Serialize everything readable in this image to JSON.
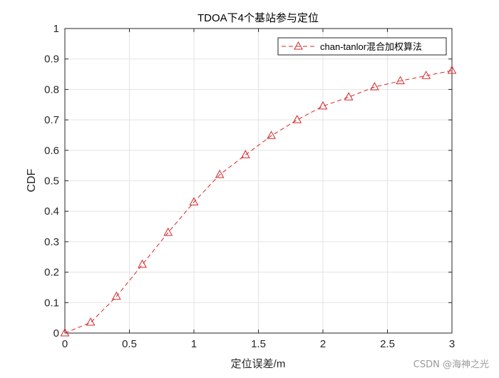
{
  "chart_data": {
    "type": "line",
    "title": "TDOA下4个基站参与定位",
    "xlabel": "定位误差/m",
    "ylabel": "CDF",
    "xlim": [
      0,
      3
    ],
    "ylim": [
      0,
      1
    ],
    "xticks": [
      0,
      0.5,
      1,
      1.5,
      2,
      2.5,
      3
    ],
    "xtick_labels": [
      "0",
      "0.5",
      "1",
      "1.5",
      "2",
      "2.5",
      "3"
    ],
    "yticks": [
      0,
      0.1,
      0.2,
      0.3,
      0.4,
      0.5,
      0.6,
      0.7,
      0.8,
      0.9,
      1
    ],
    "ytick_labels": [
      "0",
      "0.1",
      "0.2",
      "0.3",
      "0.4",
      "0.5",
      "0.6",
      "0.7",
      "0.8",
      "0.9",
      "1"
    ],
    "grid": true,
    "legend_position": "top-right",
    "series": [
      {
        "name": "chan-tanlor混合加权算法",
        "color": "#d62728",
        "line_style": "dashed",
        "marker": "triangle",
        "x": [
          0,
          0.2,
          0.4,
          0.6,
          0.8,
          1.0,
          1.2,
          1.4,
          1.6,
          1.8,
          2.0,
          2.2,
          2.4,
          2.6,
          2.8,
          3.0
        ],
        "y": [
          0.0,
          0.035,
          0.12,
          0.225,
          0.33,
          0.43,
          0.52,
          0.585,
          0.648,
          0.7,
          0.745,
          0.775,
          0.808,
          0.828,
          0.845,
          0.862
        ]
      }
    ]
  },
  "watermark": "CSDN @海神之光"
}
